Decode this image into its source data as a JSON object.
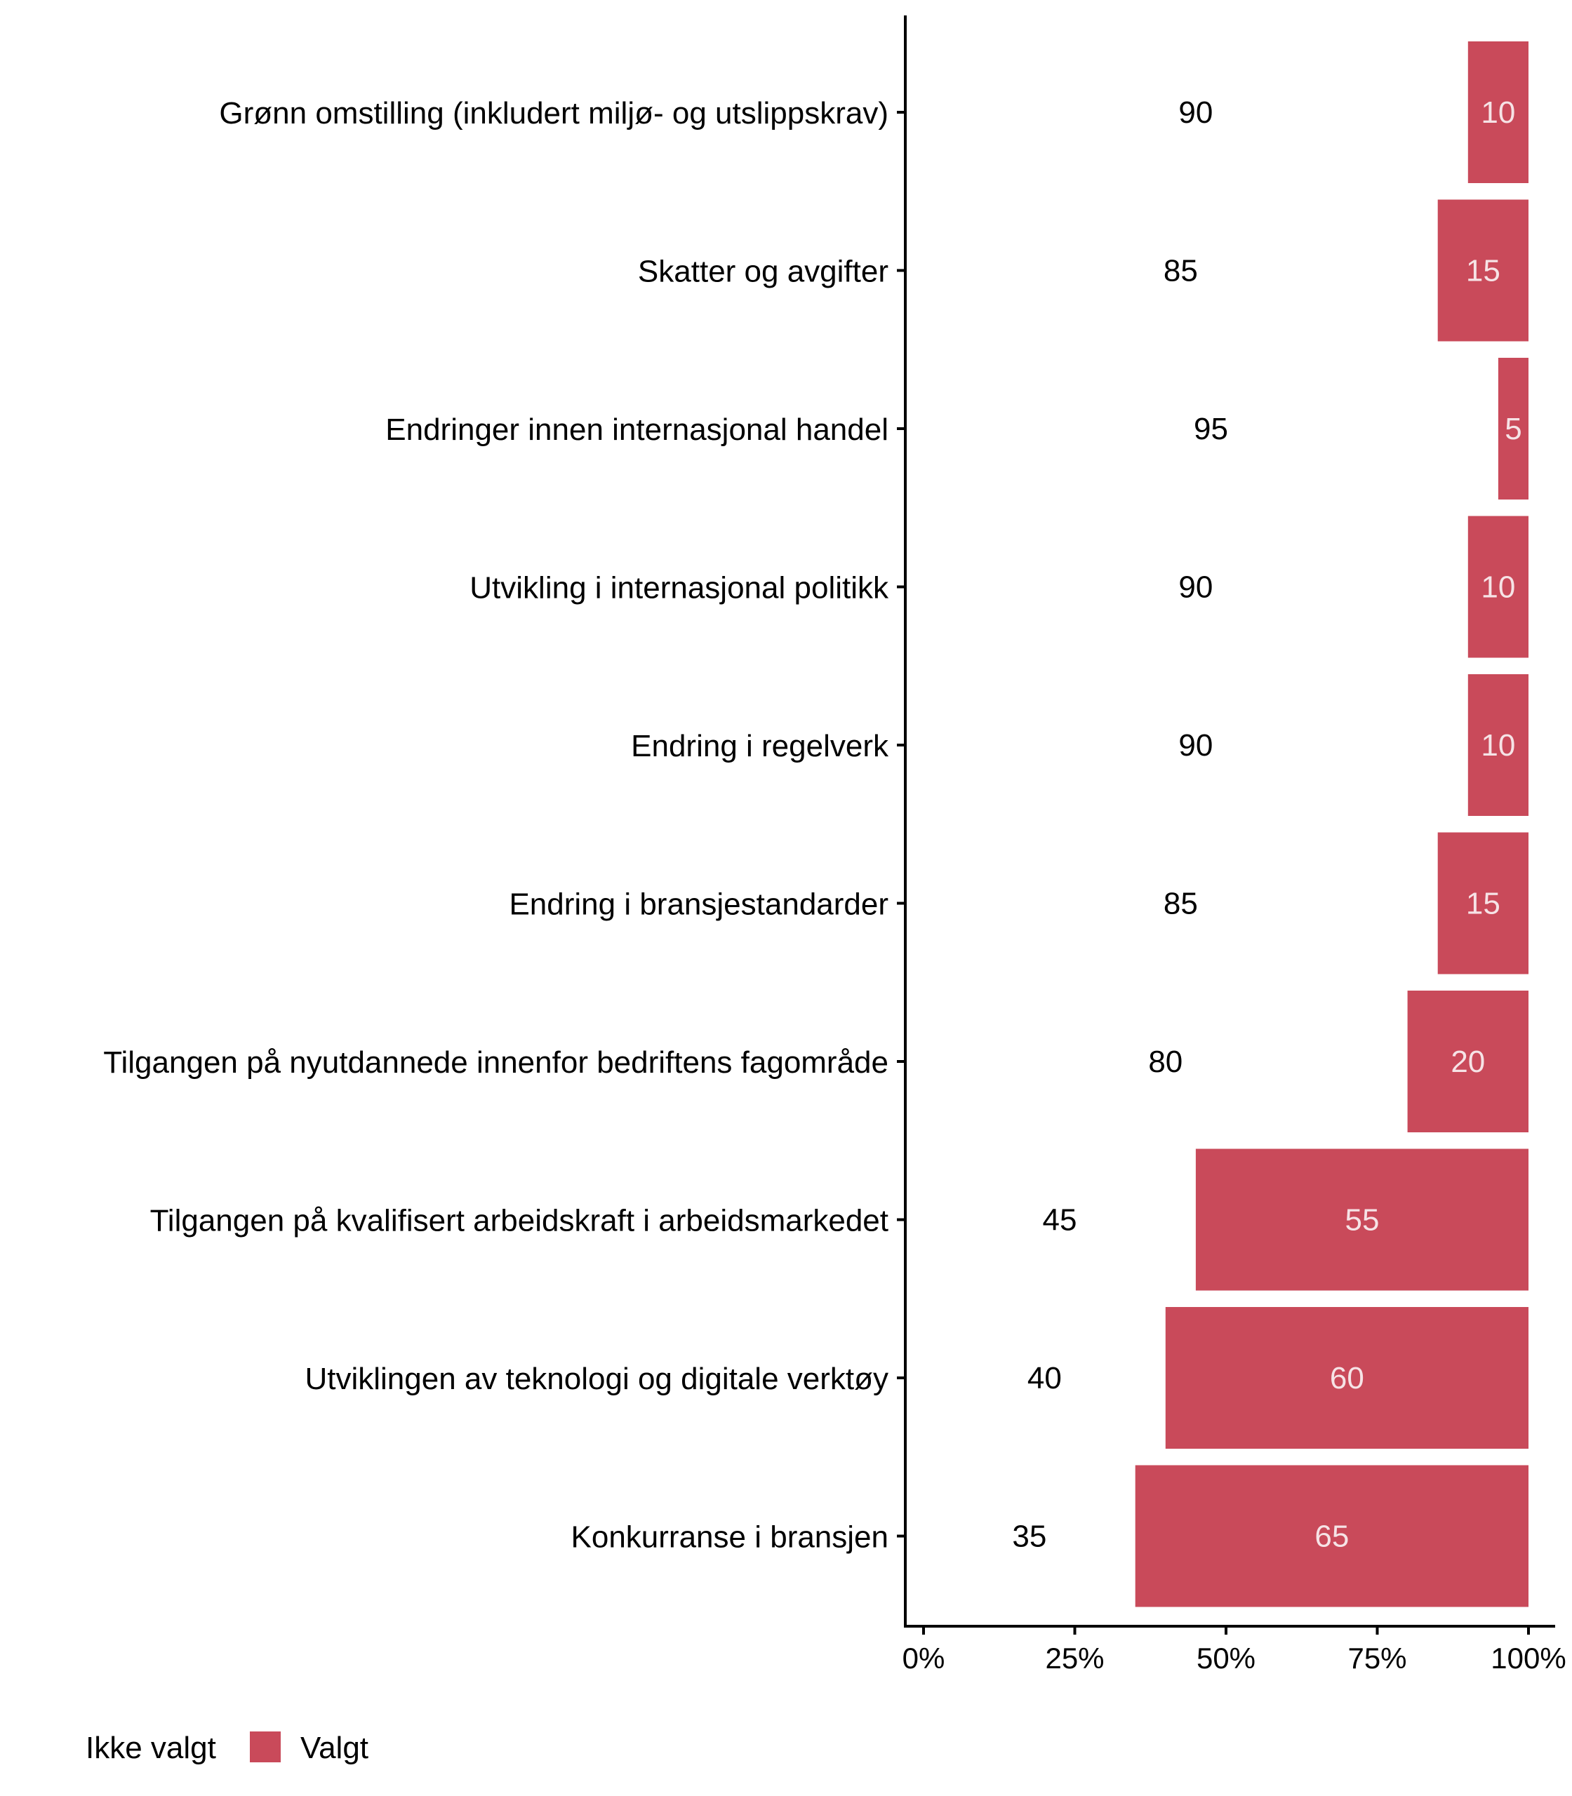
{
  "chart_data": {
    "type": "bar",
    "orientation": "horizontal",
    "stacked": true,
    "normalized": true,
    "categories": [
      "Grønn omstilling (inkludert miljø- og utslippskrav)",
      "Skatter og avgifter",
      "Endringer innen internasjonal handel",
      "Utvikling i internasjonal politikk",
      "Endring i regelverk",
      "Endring i bransjestandarder",
      "Tilgangen på nyutdannede innenfor bedriftens fagområde",
      "Tilgangen på kvalifisert arbeidskraft i arbeidsmarkedet",
      "Utviklingen av teknologi og digitale verktøy",
      "Konkurranse i bransjen"
    ],
    "series": [
      {
        "name": "Ikke valgt",
        "color": "#ffffff",
        "label_color": "#000000",
        "values": [
          90,
          85,
          95,
          90,
          90,
          85,
          80,
          45,
          40,
          35
        ],
        "labels": [
          "90",
          "85",
          "95",
          "90",
          "90",
          "85",
          "80",
          "45",
          "40",
          "35"
        ]
      },
      {
        "name": "Valgt",
        "color": "#c94a5a",
        "label_color": "#f6e3e6",
        "values": [
          10,
          15,
          5,
          10,
          10,
          15,
          20,
          55,
          60,
          65
        ],
        "labels": [
          "10",
          "15",
          "5",
          "10",
          "10",
          "15",
          "20",
          "55",
          "60",
          "65"
        ]
      }
    ],
    "xaxis": {
      "ticks": [
        0,
        25,
        50,
        75,
        100
      ],
      "tick_labels": [
        "0%",
        "25%",
        "50%",
        "75%",
        "100%"
      ],
      "range": [
        0,
        100
      ]
    },
    "legend": {
      "position": "bottom-left",
      "entries": [
        "Ikke valgt",
        "Valgt"
      ]
    },
    "title": "",
    "xlabel": "",
    "ylabel": ""
  }
}
